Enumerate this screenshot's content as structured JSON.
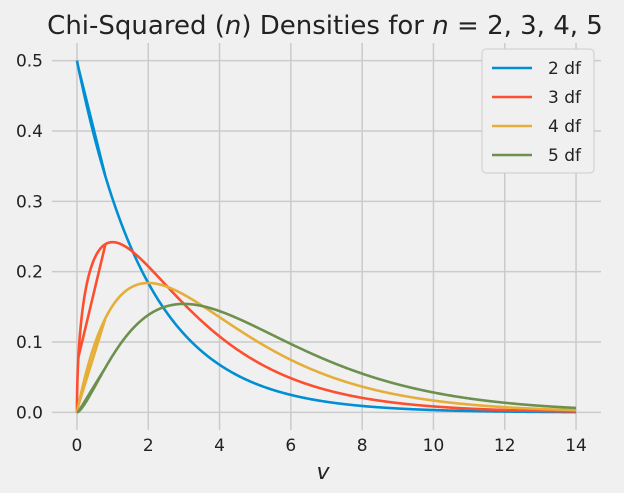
{
  "chart_data": {
    "type": "line",
    "title": "Chi-Squared (n) Densities for n = 2, 3, 4, 5",
    "xlabel": "v",
    "ylabel": "",
    "xlim": [
      -0.7,
      14.7
    ],
    "ylim": [
      -0.025,
      0.525
    ],
    "x_range": [
      0,
      14
    ],
    "xticks": [
      0,
      2,
      4,
      6,
      8,
      10,
      12,
      14
    ],
    "xtick_labels": [
      "0",
      "2",
      "4",
      "6",
      "8",
      "10",
      "12",
      "14"
    ],
    "yticks": [
      0.0,
      0.1,
      0.2,
      0.3,
      0.4,
      0.5
    ],
    "ytick_labels": [
      "0.0",
      "0.1",
      "0.2",
      "0.3",
      "0.4",
      "0.5"
    ],
    "grid": true,
    "legend_position": "top-right",
    "series": [
      {
        "name": "2 df",
        "df": 2,
        "color": "#008fd5"
      },
      {
        "name": "3 df",
        "df": 3,
        "color": "#fc4f30"
      },
      {
        "name": "4 df",
        "df": 4,
        "color": "#e5ae38"
      },
      {
        "name": "5 df",
        "df": 5,
        "color": "#6d904f"
      }
    ],
    "sample_points": [
      {
        "x": 0,
        "2 df": 0.5,
        "3 df": 0.0,
        "4 df": 0.0,
        "5 df": 0.0
      },
      {
        "x": 1,
        "2 df": 0.303,
        "3 df": 0.242,
        "4 df": 0.152,
        "5 df": 0.081
      },
      {
        "x": 2,
        "2 df": 0.184,
        "3 df": 0.208,
        "4 df": 0.184,
        "5 df": 0.138
      },
      {
        "x": 3,
        "2 df": 0.112,
        "3 df": 0.154,
        "4 df": 0.167,
        "5 df": 0.154
      },
      {
        "x": 4,
        "2 df": 0.068,
        "3 df": 0.108,
        "4 df": 0.135,
        "5 df": 0.144
      },
      {
        "x": 6,
        "2 df": 0.025,
        "3 df": 0.049,
        "4 df": 0.075,
        "5 df": 0.098
      },
      {
        "x": 8,
        "2 df": 0.009,
        "3 df": 0.021,
        "4 df": 0.037,
        "5 df": 0.055
      },
      {
        "x": 10,
        "2 df": 0.003,
        "3 df": 0.009,
        "4 df": 0.017,
        "5 df": 0.028
      },
      {
        "x": 14,
        "2 df": 0.0005,
        "3 df": 0.0014,
        "4 df": 0.0032,
        "5 df": 0.0061
      }
    ]
  }
}
